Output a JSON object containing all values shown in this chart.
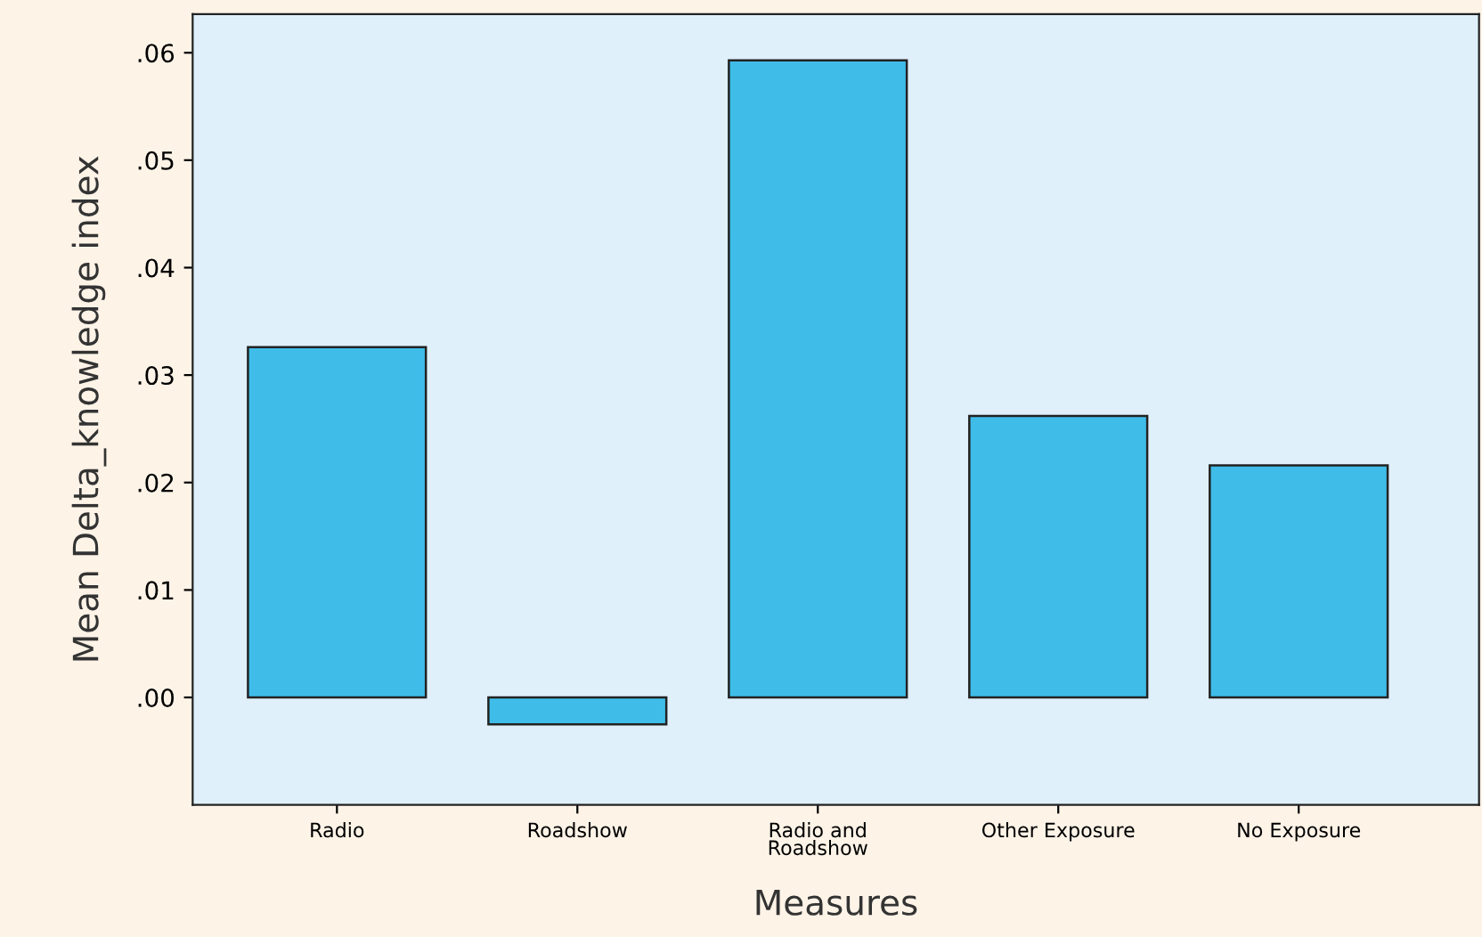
{
  "chart_data": {
    "type": "bar",
    "xlabel": "Measures",
    "ylabel": "Mean Delta_knowledge index",
    "categories": [
      "Radio",
      "Roadshow",
      "Radio and\nRoadshow",
      "Other Exposure",
      "No Exposure"
    ],
    "values": [
      0.0326,
      -0.0025,
      0.0593,
      0.0262,
      0.0216
    ],
    "color": "#3fbde8",
    "ylim": [
      -0.01,
      0.0636
    ],
    "yticks": [
      {
        "value": 0.0,
        "label": ".00"
      },
      {
        "value": 0.01,
        "label": ".01"
      },
      {
        "value": 0.02,
        "label": ".02"
      },
      {
        "value": 0.03,
        "label": ".03"
      },
      {
        "value": 0.04,
        "label": ".04"
      },
      {
        "value": 0.05,
        "label": ".05"
      },
      {
        "value": 0.06,
        "label": ".06"
      }
    ],
    "grid": false
  }
}
